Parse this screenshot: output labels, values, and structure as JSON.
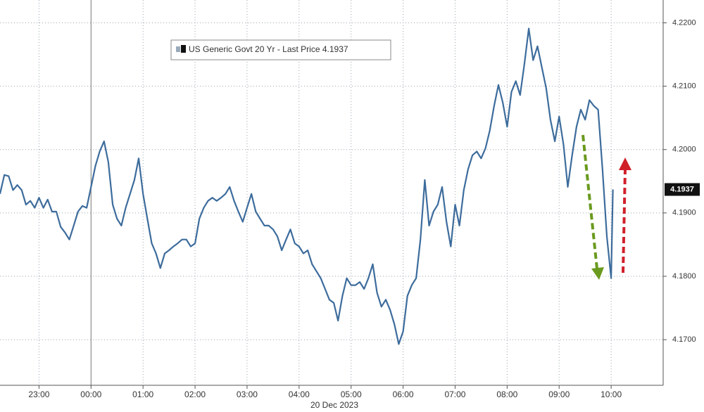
{
  "chart_data": {
    "type": "line",
    "xlabel": "20 Dec 2023",
    "x": [
      "22:15",
      "22:20",
      "22:25",
      "22:30",
      "22:35",
      "22:40",
      "22:45",
      "22:50",
      "22:55",
      "23:00",
      "23:05",
      "23:10",
      "23:15",
      "23:20",
      "23:25",
      "23:30",
      "23:35",
      "23:40",
      "23:45",
      "23:50",
      "23:55",
      "00:00",
      "00:05",
      "00:10",
      "00:15",
      "00:20",
      "00:25",
      "00:30",
      "00:35",
      "00:40",
      "00:45",
      "00:50",
      "00:55",
      "01:00",
      "01:05",
      "01:10",
      "01:15",
      "01:20",
      "01:25",
      "01:30",
      "01:35",
      "01:40",
      "01:45",
      "01:50",
      "01:55",
      "02:00",
      "02:05",
      "02:10",
      "02:15",
      "02:20",
      "02:25",
      "02:30",
      "02:35",
      "02:40",
      "02:45",
      "02:50",
      "02:55",
      "03:00",
      "03:05",
      "03:10",
      "03:15",
      "03:20",
      "03:25",
      "03:30",
      "03:35",
      "03:40",
      "03:45",
      "03:50",
      "03:55",
      "04:00",
      "04:05",
      "04:10",
      "04:15",
      "04:20",
      "04:25",
      "04:30",
      "04:35",
      "04:40",
      "04:45",
      "04:50",
      "04:55",
      "05:00",
      "05:05",
      "05:10",
      "05:15",
      "05:20",
      "05:25",
      "05:30",
      "05:35",
      "05:40",
      "05:45",
      "05:50",
      "05:55",
      "06:00",
      "06:05",
      "06:10",
      "06:15",
      "06:20",
      "06:25",
      "06:30",
      "06:35",
      "06:40",
      "06:45",
      "06:50",
      "06:55",
      "07:00",
      "07:05",
      "07:10",
      "07:15",
      "07:20",
      "07:25",
      "07:30",
      "07:35",
      "07:40",
      "07:45",
      "07:50",
      "07:55",
      "08:00",
      "08:05",
      "08:10",
      "08:15",
      "08:20",
      "08:25",
      "08:30",
      "08:35",
      "08:40",
      "08:45",
      "08:50",
      "08:55",
      "09:00",
      "09:05",
      "09:10",
      "09:15",
      "09:20",
      "09:25",
      "09:30",
      "09:35",
      "09:40",
      "09:45",
      "09:50",
      "09:55",
      "10:00",
      "10:02"
    ],
    "series": [
      {
        "name": "US Generic Govt 20 Yr - Last Price 4.1937",
        "color": "#3d6c9c",
        "values": [
          4.193,
          4.196,
          4.1958,
          4.1936,
          4.1944,
          4.1936,
          4.1913,
          4.1919,
          4.1908,
          4.1924,
          4.1908,
          4.1921,
          4.1902,
          4.1902,
          4.1878,
          4.1869,
          4.1858,
          4.188,
          4.1902,
          4.1911,
          4.1908,
          4.1941,
          4.1974,
          4.1997,
          4.2013,
          4.198,
          4.1913,
          4.1891,
          4.188,
          4.1908,
          4.193,
          4.1952,
          4.1986,
          4.193,
          4.1891,
          4.1852,
          4.1836,
          4.1813,
          4.1836,
          4.1841,
          4.1847,
          4.1852,
          4.1858,
          4.1858,
          4.1847,
          4.1852,
          4.1891,
          4.1908,
          4.1919,
          4.1924,
          4.1919,
          4.1924,
          4.193,
          4.1941,
          4.1919,
          4.1902,
          4.1886,
          4.1908,
          4.193,
          4.1902,
          4.1891,
          4.188,
          4.188,
          4.1874,
          4.1863,
          4.1841,
          4.1858,
          4.1874,
          4.1852,
          4.1847,
          4.1836,
          4.1841,
          4.1819,
          4.1808,
          4.1797,
          4.178,
          4.1763,
          4.1758,
          4.173,
          4.1769,
          4.1797,
          4.1786,
          4.1786,
          4.1791,
          4.178,
          4.1797,
          4.1819,
          4.1774,
          4.1752,
          4.1763,
          4.1747,
          4.1724,
          4.1693,
          4.1713,
          4.1769,
          4.1786,
          4.1797,
          4.1858,
          4.1952,
          4.188,
          4.1902,
          4.1913,
          4.1941,
          4.1886,
          4.1847,
          4.1913,
          4.188,
          4.1936,
          4.1969,
          4.1991,
          4.1997,
          4.1986,
          4.2002,
          4.203,
          4.2069,
          4.2102,
          4.2074,
          4.2036,
          4.2091,
          4.2108,
          4.2086,
          4.2136,
          4.2191,
          4.2141,
          4.2163,
          4.213,
          4.2097,
          4.2047,
          4.2013,
          4.2052,
          4.2008,
          4.1941,
          4.1991,
          4.2036,
          4.2063,
          4.2047,
          4.2078,
          4.2069,
          4.2063,
          4.1969,
          4.1863,
          4.1797,
          4.1937
        ]
      }
    ],
    "last_price": 4.1937,
    "xlim": [
      "22:15",
      "11:00"
    ],
    "xticks": [
      "23:00",
      "00:00",
      "01:00",
      "02:00",
      "03:00",
      "04:00",
      "05:00",
      "06:00",
      "07:00",
      "08:00",
      "09:00",
      "10:00"
    ],
    "ylim": [
      4.1628,
      4.2236
    ],
    "yticks": [
      {
        "value": 4.22,
        "label": "4.2200"
      },
      {
        "value": 4.21,
        "label": "4.2100"
      },
      {
        "value": 4.2,
        "label": "4.2000"
      },
      {
        "value": 4.19,
        "label": "4.1900"
      },
      {
        "value": 4.18,
        "label": "4.1800"
      },
      {
        "value": 4.17,
        "label": "4.1700"
      }
    ],
    "grid": true
  }
}
